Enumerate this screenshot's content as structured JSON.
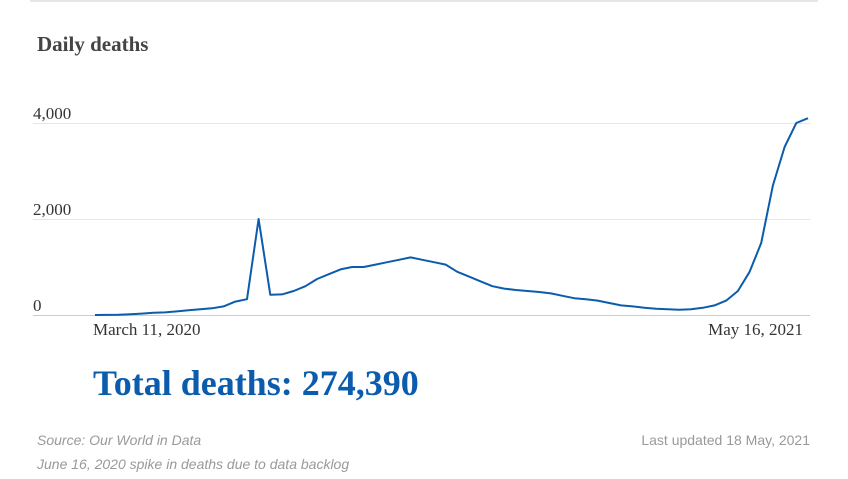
{
  "chart_data": {
    "type": "line",
    "title": "Daily deaths",
    "categories": [
      "March 11, 2020",
      null,
      null,
      null,
      null,
      null,
      null,
      null,
      null,
      null,
      null,
      null,
      null,
      null,
      null,
      null,
      null,
      null,
      null,
      null,
      null,
      null,
      null,
      null,
      null,
      null,
      null,
      null,
      null,
      null,
      null,
      null,
      null,
      null,
      null,
      null,
      null,
      null,
      null,
      null,
      null,
      null,
      null,
      null,
      null,
      null,
      null,
      null,
      null,
      null,
      null,
      null,
      null,
      null,
      null,
      null,
      null,
      null,
      null,
      null,
      null,
      "May 16, 2021"
    ],
    "series": [
      {
        "name": "Daily deaths",
        "color": "#0b5cad",
        "values": [
          0,
          2,
          5,
          15,
          30,
          45,
          55,
          75,
          100,
          120,
          140,
          180,
          280,
          330,
          2000,
          420,
          430,
          500,
          600,
          750,
          850,
          950,
          1000,
          1000,
          1050,
          1100,
          1150,
          1200,
          1150,
          1100,
          1050,
          900,
          800,
          700,
          600,
          550,
          520,
          500,
          480,
          450,
          400,
          350,
          330,
          300,
          250,
          200,
          180,
          150,
          130,
          120,
          110,
          120,
          150,
          200,
          300,
          500,
          900,
          1500,
          2700,
          3500,
          4000,
          4100
        ]
      }
    ],
    "ylim": [
      0,
      4500
    ],
    "yticks": [
      0,
      {
        "value": 2000,
        "label": "2,000"
      },
      {
        "value": 4000,
        "label": "4,000"
      }
    ],
    "grid": true
  },
  "summary": {
    "total": "Total deaths: 274,390"
  },
  "footer": {
    "source": "Source: Our World in Data",
    "note": "June 16, 2020 spike in deaths due to data backlog",
    "updated": "Last updated 18 May, 2021"
  }
}
